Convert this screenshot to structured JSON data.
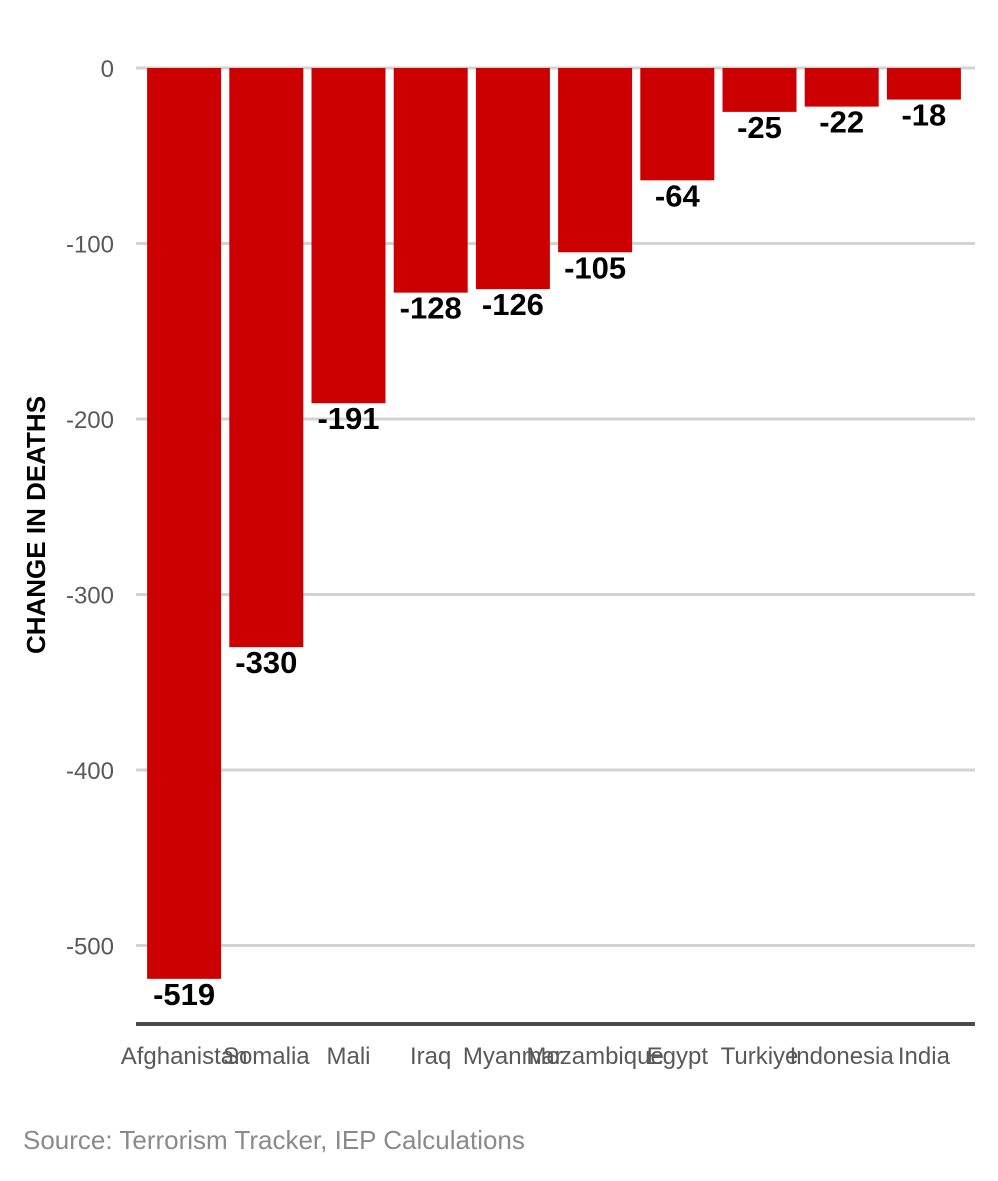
{
  "chart_data": {
    "type": "bar",
    "title": "",
    "xlabel": "",
    "ylabel": "CHANGE IN DEATHS",
    "categories": [
      "Afghanistan",
      "Somalia",
      "Mali",
      "Iraq",
      "Myanmar",
      "Mozambique",
      "Egypt",
      "Turkiye",
      "Indonesia",
      "India"
    ],
    "values": [
      -519,
      -330,
      -191,
      -128,
      -126,
      -105,
      -64,
      -25,
      -22,
      -18
    ],
    "data_labels": [
      "-519",
      "-330",
      "-191",
      "-128",
      "-126",
      "-105",
      "-64",
      "-25",
      "-22",
      "-18"
    ],
    "y_ticks": [
      0,
      -100,
      -200,
      -300,
      -400,
      -500
    ],
    "y_tick_labels": [
      "0",
      "-100",
      "-200",
      "-300",
      "-400",
      "-500"
    ],
    "ylim": [
      -545,
      0
    ],
    "grid": true,
    "legend": "none",
    "colors": {
      "bar": "#cc0000",
      "grid": "#d3d3d3",
      "axis": "#4a4a4a",
      "tick_text": "#595959",
      "value_text": "#000000"
    }
  },
  "source": "Source: Terrorism Tracker, IEP Calculations"
}
